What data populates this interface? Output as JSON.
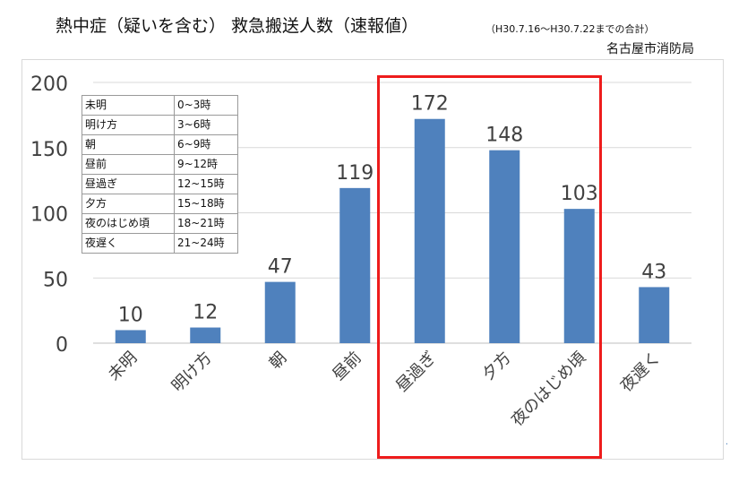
{
  "title": "熱中症（疑いを含む） 救急搬送人数（速報値）",
  "period": "（H30.7.16～H30.7.22までの合計）",
  "source": "名古屋市消防局",
  "legend": [
    {
      "name": "未明",
      "range": "0~3時"
    },
    {
      "name": "明け方",
      "range": "3~6時"
    },
    {
      "name": "朝",
      "range": "6~9時"
    },
    {
      "name": "昼前",
      "range": "9~12時"
    },
    {
      "name": "昼過ぎ",
      "range": "12~15時"
    },
    {
      "name": "夕方",
      "range": "15~18時"
    },
    {
      "name": "夜のはじめ頃",
      "range": "18~21時"
    },
    {
      "name": "夜遅く",
      "range": "21~24時"
    }
  ],
  "chart_data": {
    "type": "bar",
    "categories": [
      "未明",
      "明け方",
      "朝",
      "昼前",
      "昼過ぎ",
      "夕方",
      "夜のはじめ頃",
      "夜遅く"
    ],
    "values": [
      10,
      12,
      47,
      119,
      172,
      148,
      103,
      43
    ],
    "ylim": [
      0,
      200
    ],
    "yticks": [
      "0",
      "50",
      "100",
      "150",
      "200"
    ],
    "grid": true,
    "bar_color": "#4f81bd",
    "highlight": {
      "categories": [
        "昼過ぎ",
        "夕方",
        "夜のはじめ頃"
      ],
      "color": "#ee1c1c"
    }
  },
  "edge_mark": "."
}
